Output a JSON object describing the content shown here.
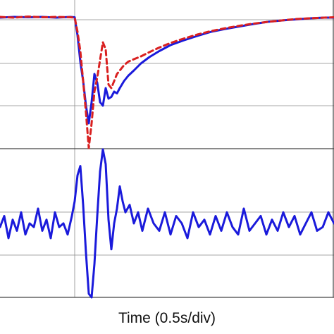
{
  "chart_data": [
    {
      "type": "line",
      "panel": "top",
      "xlabel": "",
      "ylabel": "",
      "grid": true,
      "xlim": [
        0,
        474
      ],
      "ylim": [
        0,
        4
      ],
      "series": [
        {
          "color": "#1a1adb",
          "style": "solid",
          "x": [
            0,
            20,
            40,
            60,
            80,
            100,
            106,
            110,
            114,
            118,
            122,
            126,
            130,
            134,
            138,
            142,
            146,
            150,
            154,
            158,
            162,
            166,
            170,
            176,
            182,
            190,
            200,
            212,
            226,
            242,
            260,
            280,
            300,
            320,
            340,
            360,
            380,
            400,
            420,
            440,
            460,
            474
          ],
          "y": [
            3.7,
            3.72,
            3.71,
            3.72,
            3.7,
            3.72,
            3.71,
            3.2,
            2.45,
            1.9,
            1.2,
            0.7,
            1.3,
            2.1,
            1.85,
            1.3,
            1.2,
            1.7,
            1.4,
            1.45,
            1.6,
            1.55,
            1.7,
            1.9,
            2.05,
            2.2,
            2.4,
            2.58,
            2.75,
            2.92,
            3.05,
            3.18,
            3.3,
            3.38,
            3.45,
            3.52,
            3.58,
            3.62,
            3.65,
            3.68,
            3.7,
            3.7
          ]
        },
        {
          "color": "#d92020",
          "style": "dashed",
          "x": [
            0,
            20,
            40,
            60,
            80,
            100,
            106,
            110,
            114,
            118,
            122,
            126,
            130,
            134,
            138,
            142,
            146,
            150,
            154,
            158,
            162,
            166,
            170,
            176,
            182,
            190,
            200,
            212,
            226,
            242,
            260,
            280,
            300,
            320,
            340,
            360,
            380,
            400,
            420,
            440,
            460,
            474
          ],
          "y": [
            3.72,
            3.7,
            3.73,
            3.71,
            3.72,
            3.71,
            3.7,
            3.3,
            2.75,
            1.9,
            1.0,
            0.0,
            0.7,
            1.6,
            2.0,
            2.5,
            3.0,
            2.8,
            1.8,
            1.7,
            1.9,
            2.1,
            2.2,
            2.35,
            2.45,
            2.52,
            2.6,
            2.72,
            2.85,
            2.98,
            3.1,
            3.22,
            3.32,
            3.4,
            3.47,
            3.53,
            3.58,
            3.62,
            3.66,
            3.68,
            3.7,
            3.71
          ]
        }
      ]
    },
    {
      "type": "line",
      "panel": "bottom",
      "xlabel": "Time (0.5s/div)",
      "ylabel": "",
      "grid": true,
      "xlim": [
        0,
        474
      ],
      "ylim": [
        -2,
        2
      ],
      "series": [
        {
          "color": "#1a1adb",
          "style": "solid",
          "x": [
            0,
            6,
            12,
            18,
            24,
            30,
            36,
            42,
            48,
            54,
            60,
            66,
            72,
            78,
            84,
            90,
            96,
            102,
            106,
            110,
            114,
            118,
            122,
            126,
            130,
            134,
            138,
            142,
            146,
            150,
            154,
            158,
            162,
            166,
            170,
            174,
            178,
            184,
            190,
            196,
            202,
            210,
            218,
            226,
            234,
            242,
            250,
            258,
            266,
            274,
            282,
            290,
            298,
            306,
            314,
            322,
            330,
            338,
            346,
            354,
            362,
            370,
            378,
            386,
            394,
            402,
            410,
            418,
            426,
            434,
            442,
            450,
            458,
            466,
            474
          ],
          "y": [
            -0.1,
            0.2,
            -0.4,
            0.1,
            -0.2,
            0.3,
            -0.3,
            0.0,
            -0.1,
            0.4,
            -0.2,
            0.1,
            -0.4,
            0.3,
            -0.1,
            0.0,
            -0.3,
            0.2,
            0.6,
            1.3,
            1.55,
            0.5,
            -0.8,
            -1.9,
            -2.0,
            -1.1,
            0.2,
            1.4,
            2.0,
            1.6,
            0.1,
            -0.7,
            0.0,
            0.4,
            1.0,
            0.6,
            0.3,
            0.5,
            0.0,
            0.3,
            -0.2,
            0.4,
            0.0,
            -0.2,
            0.3,
            -0.3,
            0.2,
            0.0,
            -0.4,
            0.3,
            -0.1,
            0.1,
            -0.3,
            0.2,
            -0.2,
            0.3,
            -0.1,
            -0.3,
            0.4,
            -0.2,
            0.0,
            0.2,
            -0.3,
            0.1,
            -0.2,
            0.3,
            -0.1,
            0.2,
            -0.3,
            0.0,
            0.3,
            -0.2,
            -0.1,
            0.3,
            0.0
          ]
        }
      ]
    }
  ]
}
